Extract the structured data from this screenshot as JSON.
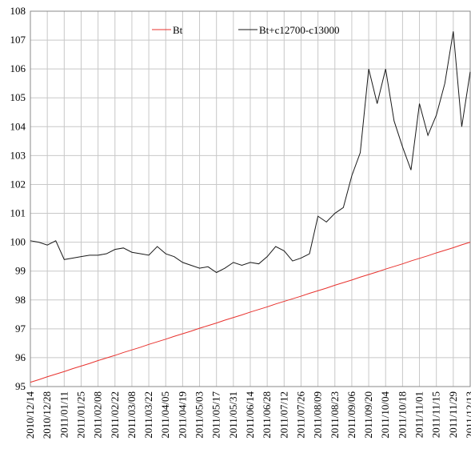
{
  "chart_data": {
    "type": "line",
    "categories": [
      "2010/12/14",
      null,
      "2010/12/28",
      null,
      "2011/01/11",
      null,
      "2011/01/25",
      null,
      "2011/02/08",
      null,
      "2011/02/22",
      null,
      "2011/03/08",
      null,
      "2011/03/22",
      null,
      "2011/04/05",
      null,
      "2011/04/19",
      null,
      "2011/05/03",
      null,
      "2011/05/17",
      null,
      "2011/05/31",
      null,
      "2011/06/14",
      null,
      "2011/06/28",
      null,
      "2011/07/12",
      null,
      "2011/07/26",
      null,
      "2011/08/09",
      null,
      "2011/08/23",
      null,
      "2011/09/06",
      null,
      "2011/09/20",
      null,
      "2011/10/04",
      null,
      "2011/10/18",
      null,
      "2011/11/01",
      null,
      "2011/11/15",
      null,
      "2011/11/29",
      null,
      "2011/12/13"
    ],
    "series": [
      {
        "name": "Bt",
        "color": "#e8322e",
        "values": [
          95.15,
          95.24,
          95.34,
          95.43,
          95.52,
          95.62,
          95.71,
          95.8,
          95.9,
          95.99,
          96.08,
          96.18,
          96.27,
          96.36,
          96.46,
          96.55,
          96.64,
          96.74,
          96.83,
          96.92,
          97.02,
          97.11,
          97.2,
          97.3,
          97.39,
          97.48,
          97.58,
          97.67,
          97.76,
          97.86,
          97.95,
          98.04,
          98.13,
          98.23,
          98.32,
          98.41,
          98.51,
          98.6,
          98.69,
          98.79,
          98.88,
          98.97,
          99.07,
          99.16,
          99.25,
          99.35,
          99.44,
          99.53,
          99.63,
          99.72,
          99.81,
          99.91,
          100.0
        ]
      },
      {
        "name": "Bt+c12700-c13000",
        "color": "#1a1a1a",
        "values": [
          100.05,
          100.0,
          99.9,
          100.05,
          99.4,
          99.45,
          99.5,
          99.55,
          99.55,
          99.6,
          99.75,
          99.8,
          99.65,
          99.6,
          99.55,
          99.85,
          99.6,
          99.5,
          99.3,
          99.2,
          99.1,
          99.15,
          98.95,
          99.1,
          99.3,
          99.2,
          99.3,
          99.25,
          99.5,
          99.85,
          99.7,
          99.35,
          99.45,
          99.6,
          100.9,
          100.7,
          101.0,
          101.2,
          102.3,
          103.1,
          106.0,
          104.8,
          106.0,
          104.2,
          103.3,
          102.5,
          104.8,
          103.7,
          104.4,
          105.5,
          107.3,
          104.0,
          105.9
        ]
      }
    ],
    "ylim": [
      95,
      108
    ],
    "yticks": [
      95,
      96,
      97,
      98,
      99,
      100,
      101,
      102,
      103,
      104,
      105,
      106,
      107,
      108
    ],
    "grid": true,
    "legend": "top"
  }
}
